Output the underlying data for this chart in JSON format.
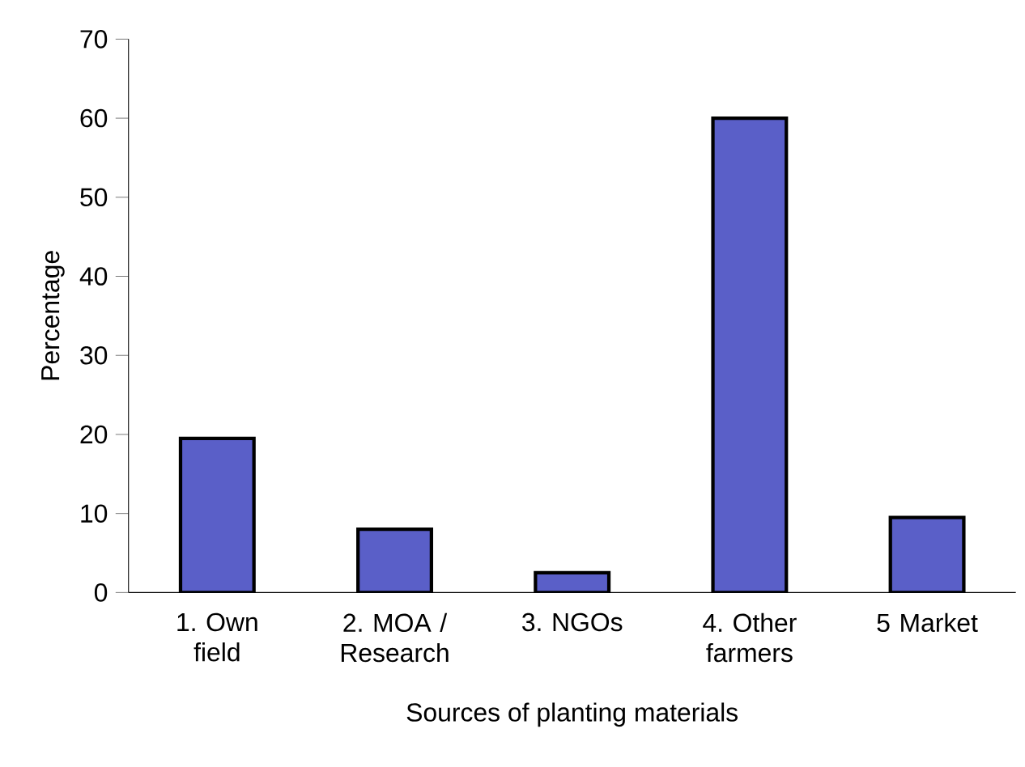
{
  "chart_data": {
    "type": "bar",
    "xlabel": "Sources of planting materials",
    "ylabel": "Percentage",
    "categories": [
      "1. Own field",
      "2. MOA / Research",
      "3. NGOs",
      "4. Other farmers",
      "5 Market"
    ],
    "values": [
      19.5,
      8,
      2.5,
      60,
      9.5
    ],
    "color": "#5a5fc8",
    "ylim": [
      0,
      70
    ],
    "yticks": [
      0,
      10,
      20,
      30,
      40,
      50,
      60,
      70
    ],
    "grid": false
  }
}
